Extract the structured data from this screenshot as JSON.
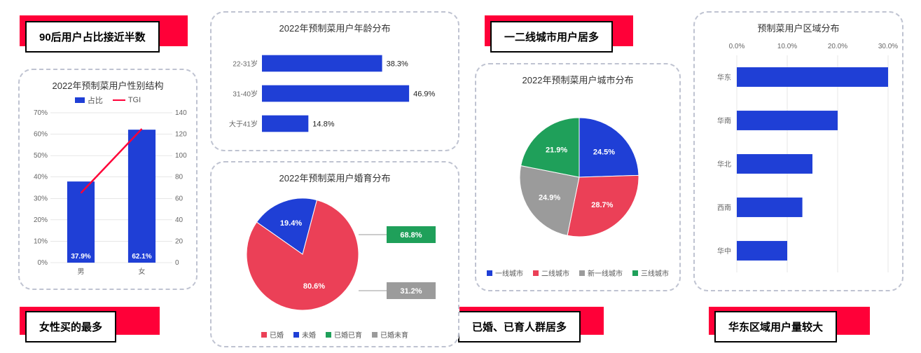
{
  "colors": {
    "blue": "#1f3fd6",
    "red": "#eb4057",
    "green": "#1fa05a",
    "gray": "#9b9b9b",
    "accent_red": "#ff0038",
    "dash": "#bfc3d1",
    "text": "#333333"
  },
  "callouts": {
    "c1": "90后用户占比接近半数",
    "c2": "一二线城市用户居多",
    "c3": "女性买的最多",
    "c4": "已婚、已育人群居多",
    "c5": "华东区域用户量较大"
  },
  "gender_chart": {
    "title": "2022年预制菜用户性别结构",
    "legend_bar": "占比",
    "legend_line": "TGI",
    "categories": [
      "男",
      "女"
    ],
    "bar_values": [
      37.9,
      62.1
    ],
    "bar_labels": [
      "37.9%",
      "62.1%"
    ],
    "line_values": [
      65,
      125
    ],
    "y_left_ticks": [
      "0%",
      "10%",
      "20%",
      "30%",
      "40%",
      "50%",
      "60%",
      "70%"
    ],
    "y_left_max": 70,
    "y_right_ticks": [
      "0",
      "20",
      "40",
      "60",
      "80",
      "100",
      "120",
      "140"
    ],
    "y_right_max": 140,
    "bar_color": "#1f3fd6",
    "line_color": "#ff0038"
  },
  "age_chart": {
    "title": "2022年预制菜用户年龄分布",
    "categories": [
      "22-31岁",
      "31-40岁",
      "大于41岁"
    ],
    "values": [
      38.3,
      46.9,
      14.8
    ],
    "value_labels": [
      "38.3%",
      "46.9%",
      "14.8%"
    ],
    "max": 50,
    "bar_color": "#1f3fd6"
  },
  "marriage_chart": {
    "title": "2022年预制菜用户婚育分布",
    "slices": [
      {
        "label": "已婚",
        "value": 80.6,
        "color": "#eb4057",
        "display": "80.6%"
      },
      {
        "label": "未婚",
        "value": 19.4,
        "color": "#1f3fd6",
        "display": "19.4%"
      }
    ],
    "side_badges": [
      {
        "label": "已婚已育",
        "display": "68.8%",
        "color": "#1fa05a"
      },
      {
        "label": "已婚未育",
        "display": "31.2%",
        "color": "#9b9b9b"
      }
    ],
    "legend": [
      "已婚",
      "未婚",
      "已婚已育",
      "已婚未育"
    ],
    "legend_colors": [
      "#eb4057",
      "#1f3fd6",
      "#1fa05a",
      "#9b9b9b"
    ]
  },
  "city_chart": {
    "title": "2022年预制菜用户城市分布",
    "slices": [
      {
        "label": "一线城市",
        "value": 24.5,
        "color": "#1f3fd6",
        "display": "24.5%"
      },
      {
        "label": "二线城市",
        "value": 28.7,
        "color": "#eb4057",
        "display": "28.7%"
      },
      {
        "label": "新一线城市",
        "value": 24.9,
        "color": "#9b9b9b",
        "display": "24.9%"
      },
      {
        "label": "三线城市",
        "value": 21.9,
        "color": "#1fa05a",
        "display": "21.9%"
      }
    ],
    "legend": [
      "一线城市",
      "二线城市",
      "新一线城市",
      "三线城市"
    ],
    "legend_colors": [
      "#1f3fd6",
      "#eb4057",
      "#9b9b9b",
      "#1fa05a"
    ]
  },
  "region_chart": {
    "title": "预制菜用户区域分布",
    "x_ticks": [
      "0.0%",
      "10.0%",
      "20.0%",
      "30.0%"
    ],
    "x_max": 30,
    "categories": [
      "华东",
      "华南",
      "华北",
      "西南",
      "华中"
    ],
    "values": [
      30,
      20,
      15,
      13,
      10
    ],
    "bar_color": "#1f3fd6",
    "grid_color": "#cfcfcf"
  }
}
